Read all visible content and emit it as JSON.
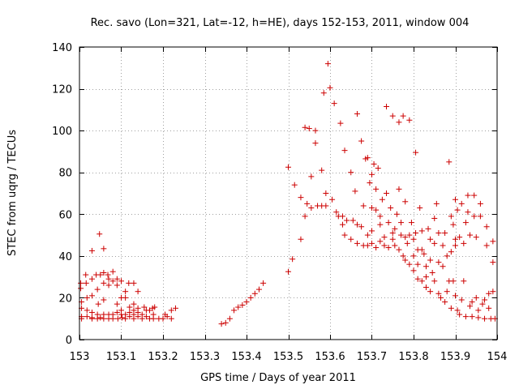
{
  "chart_data": {
    "type": "scatter",
    "title": "Rec. savo (Lon=321, Lat=-12, h=HE), days 152-153, 2011, window 004",
    "xlabel": "GPS time / Days of year 2011",
    "ylabel": "STEC from uqrg / TECUs",
    "xlim": [
      153,
      154
    ],
    "ylim": [
      0,
      140
    ],
    "xticks": [
      153,
      153.1,
      153.2,
      153.3,
      153.4,
      153.5,
      153.6,
      153.7,
      153.8,
      153.9,
      154
    ],
    "xtick_labels": [
      "153",
      "153.1",
      "153.2",
      "153.3",
      "153.4",
      "153.5",
      "153.6",
      "153.7",
      "153.8",
      "153.9",
      "154"
    ],
    "yticks": [
      0,
      20,
      40,
      60,
      80,
      100,
      120,
      140
    ],
    "ytick_labels": [
      "0",
      "20",
      "40",
      "60",
      "80",
      "100",
      "120",
      "140"
    ],
    "grid": true,
    "marker": "+",
    "color": "#cc0000",
    "points": [
      [
        153.003,
        24.5
      ],
      [
        153.003,
        27
      ],
      [
        153.005,
        18
      ],
      [
        153.005,
        15
      ],
      [
        153.005,
        11
      ],
      [
        153.005,
        10
      ],
      [
        153.015,
        31
      ],
      [
        153.016,
        27
      ],
      [
        153.018,
        20
      ],
      [
        153.018,
        14
      ],
      [
        153.018,
        11
      ],
      [
        153.03,
        29
      ],
      [
        153.03,
        21
      ],
      [
        153.03,
        42.5
      ],
      [
        153.03,
        13
      ],
      [
        153.03,
        10.5
      ],
      [
        153.03,
        10
      ],
      [
        153.04,
        31
      ],
      [
        153.043,
        24
      ],
      [
        153.045,
        17
      ],
      [
        153.043,
        12
      ],
      [
        153.043,
        10
      ],
      [
        153.048,
        50.5
      ],
      [
        153.05,
        31
      ],
      [
        153.05,
        10.5
      ],
      [
        153.058,
        43.5
      ],
      [
        153.058,
        32
      ],
      [
        153.058,
        27
      ],
      [
        153.058,
        19
      ],
      [
        153.058,
        12
      ],
      [
        153.058,
        10
      ],
      [
        153.068,
        31
      ],
      [
        153.07,
        29
      ],
      [
        153.07,
        26
      ],
      [
        153.07,
        12
      ],
      [
        153.07,
        10
      ],
      [
        153.08,
        32.5
      ],
      [
        153.08,
        28
      ],
      [
        153.08,
        12
      ],
      [
        153.08,
        10
      ],
      [
        153.09,
        29
      ],
      [
        153.09,
        26
      ],
      [
        153.09,
        17
      ],
      [
        153.09,
        13
      ],
      [
        153.092,
        10
      ],
      [
        153.1,
        28
      ],
      [
        153.1,
        20
      ],
      [
        153.1,
        14
      ],
      [
        153.1,
        12
      ],
      [
        153.102,
        10.5
      ],
      [
        153.11,
        20
      ],
      [
        153.11,
        23
      ],
      [
        153.11,
        12
      ],
      [
        153.11,
        10
      ],
      [
        153.118,
        27
      ],
      [
        153.12,
        15.5
      ],
      [
        153.12,
        13
      ],
      [
        153.12,
        11
      ],
      [
        153.13,
        27
      ],
      [
        153.13,
        17
      ],
      [
        153.13,
        14
      ],
      [
        153.13,
        12
      ],
      [
        153.13,
        10
      ],
      [
        153.14,
        23
      ],
      [
        153.14,
        15
      ],
      [
        153.14,
        13
      ],
      [
        153.14,
        11
      ],
      [
        153.15,
        12
      ],
      [
        153.15,
        10
      ],
      [
        153.155,
        15.5
      ],
      [
        153.16,
        14
      ],
      [
        153.16,
        11
      ],
      [
        153.168,
        14
      ],
      [
        153.168,
        10
      ],
      [
        153.175,
        15
      ],
      [
        153.177,
        12
      ],
      [
        153.177,
        10
      ],
      [
        153.18,
        15.5
      ],
      [
        153.19,
        10
      ],
      [
        153.2,
        10
      ],
      [
        153.205,
        12
      ],
      [
        153.21,
        11
      ],
      [
        153.22,
        10
      ],
      [
        153.22,
        14
      ],
      [
        153.23,
        15
      ],
      [
        153.34,
        7.5
      ],
      [
        153.35,
        8
      ],
      [
        153.36,
        10
      ],
      [
        153.37,
        14
      ],
      [
        153.38,
        15.5
      ],
      [
        153.39,
        16.5
      ],
      [
        153.4,
        18
      ],
      [
        153.41,
        20
      ],
      [
        153.42,
        22
      ],
      [
        153.43,
        24
      ],
      [
        153.44,
        27
      ],
      [
        153.5,
        32.5
      ],
      [
        153.5,
        82.5
      ],
      [
        153.51,
        38.5
      ],
      [
        153.515,
        74
      ],
      [
        153.53,
        48
      ],
      [
        153.53,
        68
      ],
      [
        153.54,
        59
      ],
      [
        153.54,
        101.5
      ],
      [
        153.545,
        65
      ],
      [
        153.55,
        101
      ],
      [
        153.555,
        78
      ],
      [
        153.555,
        63
      ],
      [
        153.565,
        100
      ],
      [
        153.565,
        94
      ],
      [
        153.57,
        64
      ],
      [
        153.58,
        81
      ],
      [
        153.58,
        64
      ],
      [
        153.585,
        118
      ],
      [
        153.59,
        70
      ],
      [
        153.59,
        64
      ],
      [
        153.595,
        132
      ],
      [
        153.6,
        120.5
      ],
      [
        153.605,
        67
      ],
      [
        153.61,
        113
      ],
      [
        153.615,
        61
      ],
      [
        153.62,
        59
      ],
      [
        153.625,
        103.5
      ],
      [
        153.63,
        55
      ],
      [
        153.63,
        59
      ],
      [
        153.635,
        90.5
      ],
      [
        153.635,
        50
      ],
      [
        153.64,
        57
      ],
      [
        153.65,
        80
      ],
      [
        153.65,
        48
      ],
      [
        153.655,
        57
      ],
      [
        153.66,
        71
      ],
      [
        153.665,
        108
      ],
      [
        153.665,
        55
      ],
      [
        153.665,
        46
      ],
      [
        153.675,
        95
      ],
      [
        153.675,
        54
      ],
      [
        153.68,
        64
      ],
      [
        153.68,
        45
      ],
      [
        153.685,
        86.5
      ],
      [
        153.69,
        87
      ],
      [
        153.69,
        50
      ],
      [
        153.69,
        45
      ],
      [
        153.695,
        75
      ],
      [
        153.7,
        63
      ],
      [
        153.7,
        79
      ],
      [
        153.7,
        52
      ],
      [
        153.7,
        46
      ],
      [
        153.705,
        84
      ],
      [
        153.71,
        72
      ],
      [
        153.71,
        62
      ],
      [
        153.71,
        44
      ],
      [
        153.715,
        82
      ],
      [
        153.72,
        59
      ],
      [
        153.72,
        55
      ],
      [
        153.72,
        47
      ],
      [
        153.725,
        67
      ],
      [
        153.73,
        45
      ],
      [
        153.73,
        49
      ],
      [
        153.735,
        111.5
      ],
      [
        153.735,
        70
      ],
      [
        153.74,
        56
      ],
      [
        153.74,
        44
      ],
      [
        153.745,
        63
      ],
      [
        153.75,
        51
      ],
      [
        153.75,
        107
      ],
      [
        153.75,
        48
      ],
      [
        153.755,
        53
      ],
      [
        153.755,
        45
      ],
      [
        153.76,
        60
      ],
      [
        153.765,
        104
      ],
      [
        153.765,
        72
      ],
      [
        153.765,
        43
      ],
      [
        153.77,
        50
      ],
      [
        153.77,
        56
      ],
      [
        153.775,
        107
      ],
      [
        153.775,
        40
      ],
      [
        153.78,
        66
      ],
      [
        153.78,
        49
      ],
      [
        153.78,
        38
      ],
      [
        153.785,
        46
      ],
      [
        153.79,
        105
      ],
      [
        153.79,
        50
      ],
      [
        153.79,
        36
      ],
      [
        153.795,
        56
      ],
      [
        153.8,
        48
      ],
      [
        153.8,
        40
      ],
      [
        153.8,
        33
      ],
      [
        153.805,
        89.5
      ],
      [
        153.805,
        51
      ],
      [
        153.81,
        43
      ],
      [
        153.81,
        36
      ],
      [
        153.81,
        29
      ],
      [
        153.815,
        63
      ],
      [
        153.82,
        52
      ],
      [
        153.82,
        43
      ],
      [
        153.82,
        28
      ],
      [
        153.825,
        41
      ],
      [
        153.83,
        35
      ],
      [
        153.83,
        30
      ],
      [
        153.83,
        25
      ],
      [
        153.835,
        53
      ],
      [
        153.84,
        48
      ],
      [
        153.84,
        38
      ],
      [
        153.84,
        23
      ],
      [
        153.845,
        32
      ],
      [
        153.85,
        58
      ],
      [
        153.85,
        46
      ],
      [
        153.85,
        28
      ],
      [
        153.855,
        65
      ],
      [
        153.86,
        51
      ],
      [
        153.86,
        37
      ],
      [
        153.86,
        22
      ],
      [
        153.865,
        20
      ],
      [
        153.87,
        45
      ],
      [
        153.87,
        35
      ],
      [
        153.875,
        51
      ],
      [
        153.875,
        18
      ],
      [
        153.88,
        40
      ],
      [
        153.88,
        23
      ],
      [
        153.885,
        85
      ],
      [
        153.885,
        28
      ],
      [
        153.89,
        59
      ],
      [
        153.89,
        42
      ],
      [
        153.89,
        15
      ],
      [
        153.895,
        28
      ],
      [
        153.895,
        55
      ],
      [
        153.9,
        67
      ],
      [
        153.9,
        48
      ],
      [
        153.9,
        45
      ],
      [
        153.9,
        21
      ],
      [
        153.905,
        62
      ],
      [
        153.905,
        14
      ],
      [
        153.91,
        49
      ],
      [
        153.91,
        12
      ],
      [
        153.915,
        65
      ],
      [
        153.915,
        19
      ],
      [
        153.92,
        46
      ],
      [
        153.92,
        28
      ],
      [
        153.925,
        56
      ],
      [
        153.925,
        11
      ],
      [
        153.93,
        69
      ],
      [
        153.93,
        61
      ],
      [
        153.935,
        50
      ],
      [
        153.935,
        16
      ],
      [
        153.94,
        18
      ],
      [
        153.94,
        11
      ],
      [
        153.945,
        69
      ],
      [
        153.945,
        59
      ],
      [
        153.95,
        49
      ],
      [
        153.95,
        20
      ],
      [
        153.955,
        14
      ],
      [
        153.955,
        10.5
      ],
      [
        153.96,
        65
      ],
      [
        153.96,
        59
      ],
      [
        153.965,
        17
      ],
      [
        153.97,
        19
      ],
      [
        153.97,
        10
      ],
      [
        153.975,
        45
      ],
      [
        153.975,
        54
      ],
      [
        153.98,
        22
      ],
      [
        153.98,
        15
      ],
      [
        153.985,
        10
      ],
      [
        153.99,
        47
      ],
      [
        153.99,
        37
      ],
      [
        153.99,
        23
      ],
      [
        153.995,
        10
      ]
    ]
  }
}
